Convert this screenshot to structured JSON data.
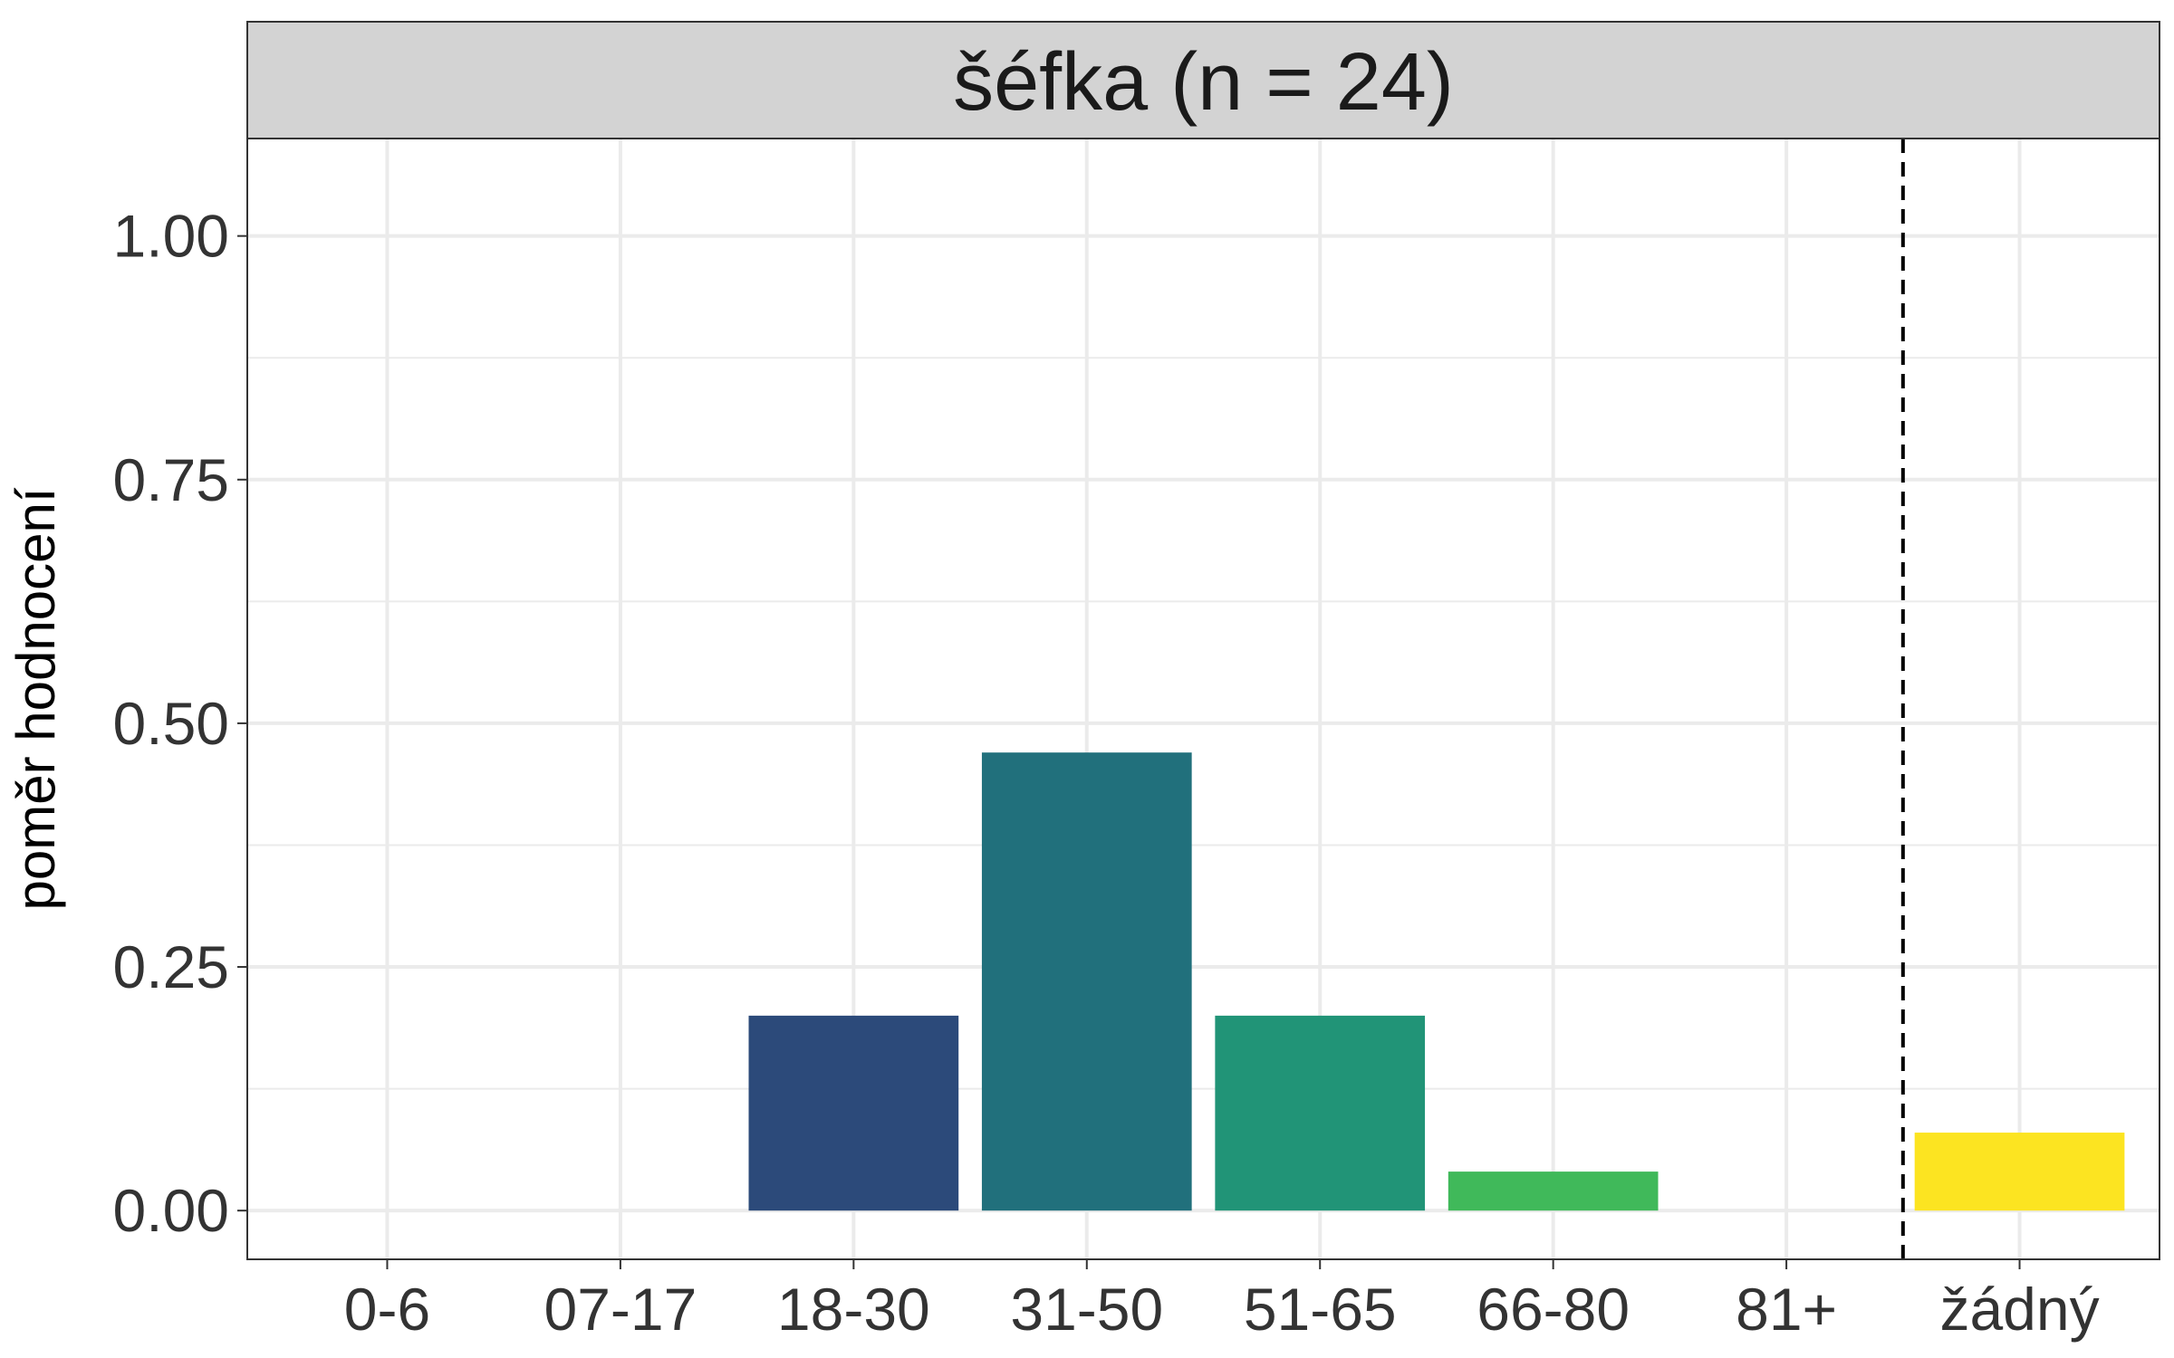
{
  "chart_data": {
    "type": "bar",
    "title": "šéfka (n = 24)",
    "xlabel": "",
    "ylabel": "poměr hodnocení",
    "categories": [
      "0-6",
      "07-17",
      "18-30",
      "31-50",
      "51-65",
      "66-80",
      "81+",
      "žádný"
    ],
    "values": [
      0,
      0,
      0.2,
      0.47,
      0.2,
      0.04,
      0,
      0.08
    ],
    "colors": [
      "#440154",
      "#46337e",
      "#2c4a7a",
      "#21707c",
      "#219477",
      "#40b95a",
      "#8fd744",
      "#fce421"
    ],
    "ylim": [
      -0.05,
      1.1
    ],
    "yticks": [
      0,
      0.25,
      0.5,
      0.75,
      1
    ],
    "ytick_labels": [
      "0.00",
      "0.25",
      "0.50",
      "0.75",
      "1.00"
    ],
    "reference_line": {
      "after_category": "81+",
      "style": "dashed"
    },
    "grid": true,
    "legend": "none"
  }
}
